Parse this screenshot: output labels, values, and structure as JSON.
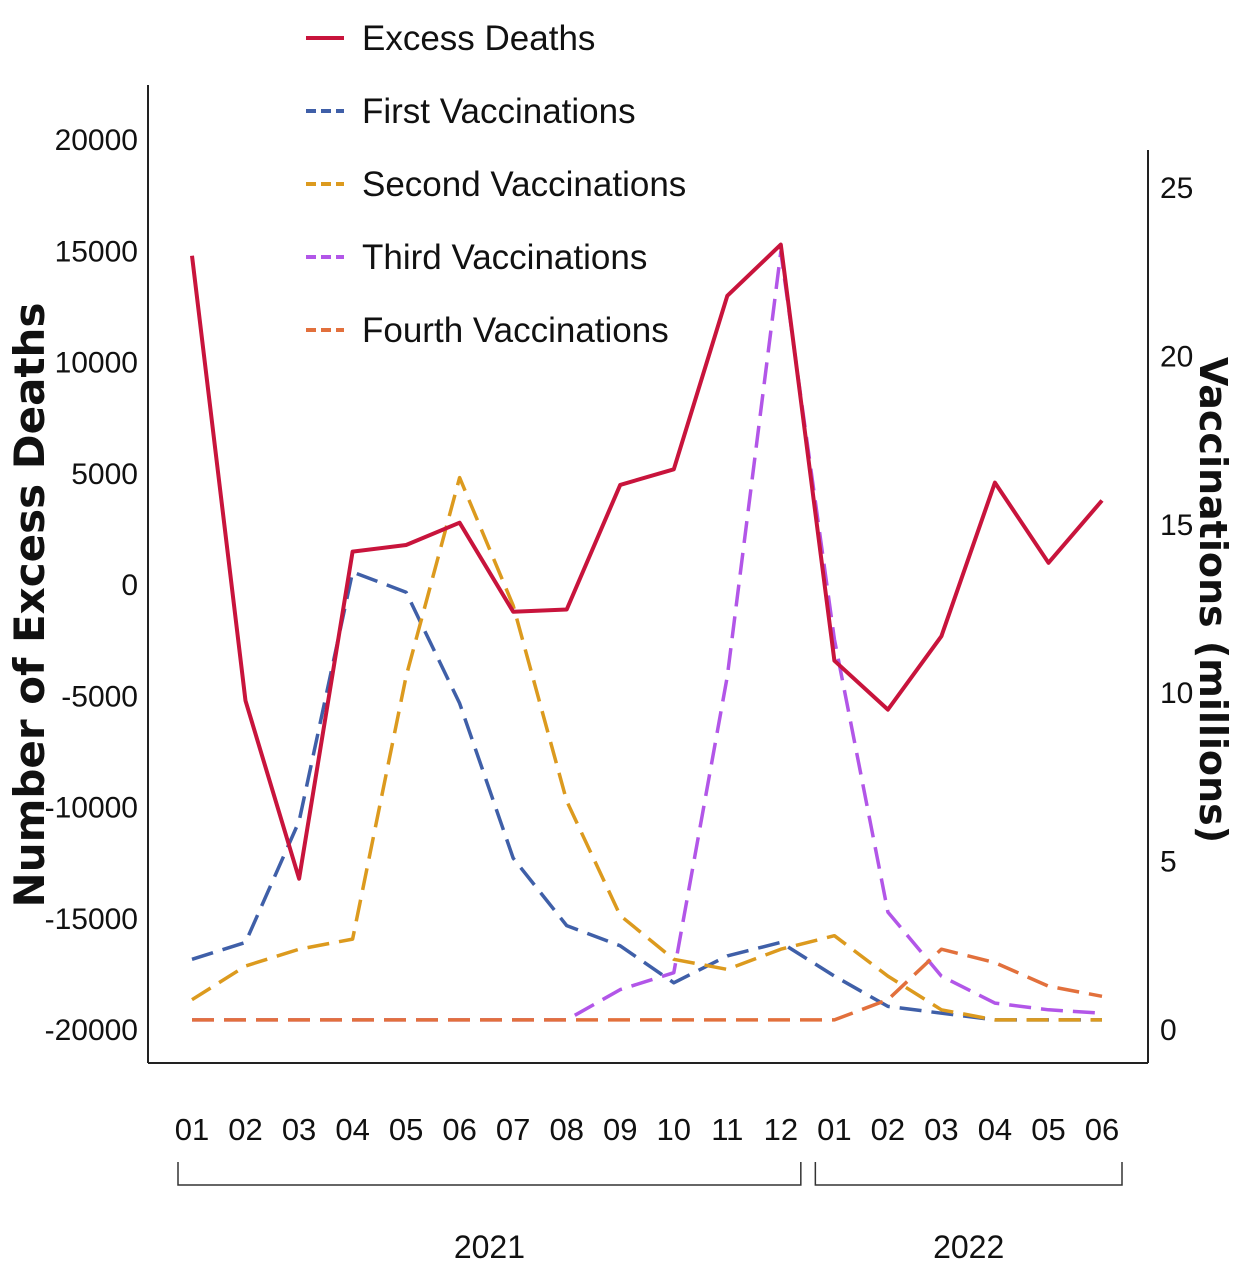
{
  "chart_data": {
    "type": "line",
    "x": [
      "2021-01",
      "2021-02",
      "2021-03",
      "2021-04",
      "2021-05",
      "2021-06",
      "2021-07",
      "2021-08",
      "2021-09",
      "2021-10",
      "2021-11",
      "2021-12",
      "2022-01",
      "2022-02",
      "2022-03",
      "2022-04",
      "2022-05",
      "2022-06"
    ],
    "tick_labels": [
      "01",
      "02",
      "03",
      "04",
      "05",
      "06",
      "07",
      "08",
      "09",
      "10",
      "11",
      "12",
      "01",
      "02",
      "03",
      "04",
      "05",
      "06"
    ],
    "year_groups": [
      {
        "label": "2021",
        "from": 0,
        "to": 11
      },
      {
        "label": "2022",
        "from": 12,
        "to": 17
      }
    ],
    "ylabel_left": "Number of Excess Deaths",
    "ylabel_right": "Vaccinations (millions)",
    "y_left_lim": [
      -20000,
      20000
    ],
    "y_left_ticks": [
      20000,
      15000,
      10000,
      5000,
      0,
      -5000,
      -10000,
      -15000,
      -20000
    ],
    "y_right_lim": [
      0,
      25
    ],
    "y_right_ticks": [
      25,
      20,
      15,
      10,
      5,
      0
    ],
    "legend_position": "top-left",
    "grid": false,
    "series": [
      {
        "name": "Excess Deaths",
        "axis": "left",
        "style": "solid",
        "color": "#c8143c",
        "values": [
          14800,
          -5200,
          -13200,
          1500,
          1800,
          2800,
          -1200,
          -1100,
          4500,
          5200,
          13000,
          15300,
          -3400,
          -5600,
          -2300,
          4600,
          1000,
          3800
        ]
      },
      {
        "name": "First Vaccinations",
        "axis": "right",
        "style": "dashed",
        "color": "#3f5fa8",
        "values": [
          2.1,
          2.6,
          6.2,
          13.6,
          13.0,
          9.7,
          5.1,
          3.1,
          2.5,
          1.4,
          2.2,
          2.6,
          1.6,
          0.7,
          0.5,
          0.3,
          0.3,
          0.3
        ]
      },
      {
        "name": "Second Vaccinations",
        "axis": "right",
        "style": "dashed",
        "color": "#dc9a1e",
        "values": [
          0.9,
          1.9,
          2.4,
          2.7,
          10.5,
          16.4,
          12.6,
          6.8,
          3.4,
          2.1,
          1.8,
          2.4,
          2.8,
          1.6,
          0.6,
          0.3,
          0.3,
          0.3
        ]
      },
      {
        "name": "Third Vaccinations",
        "axis": "right",
        "style": "dashed",
        "color": "#b256e8",
        "values": [
          0.3,
          0.3,
          0.3,
          0.3,
          0.3,
          0.3,
          0.3,
          0.3,
          1.2,
          1.7,
          10.5,
          23.1,
          11.6,
          3.5,
          1.6,
          0.8,
          0.6,
          0.5
        ]
      },
      {
        "name": "Fourth Vaccinations",
        "axis": "right",
        "style": "dashed",
        "color": "#e2703c",
        "values": [
          0.3,
          0.3,
          0.3,
          0.3,
          0.3,
          0.3,
          0.3,
          0.3,
          0.3,
          0.3,
          0.3,
          0.3,
          0.3,
          0.9,
          2.4,
          2.0,
          1.3,
          1.0
        ]
      }
    ]
  }
}
